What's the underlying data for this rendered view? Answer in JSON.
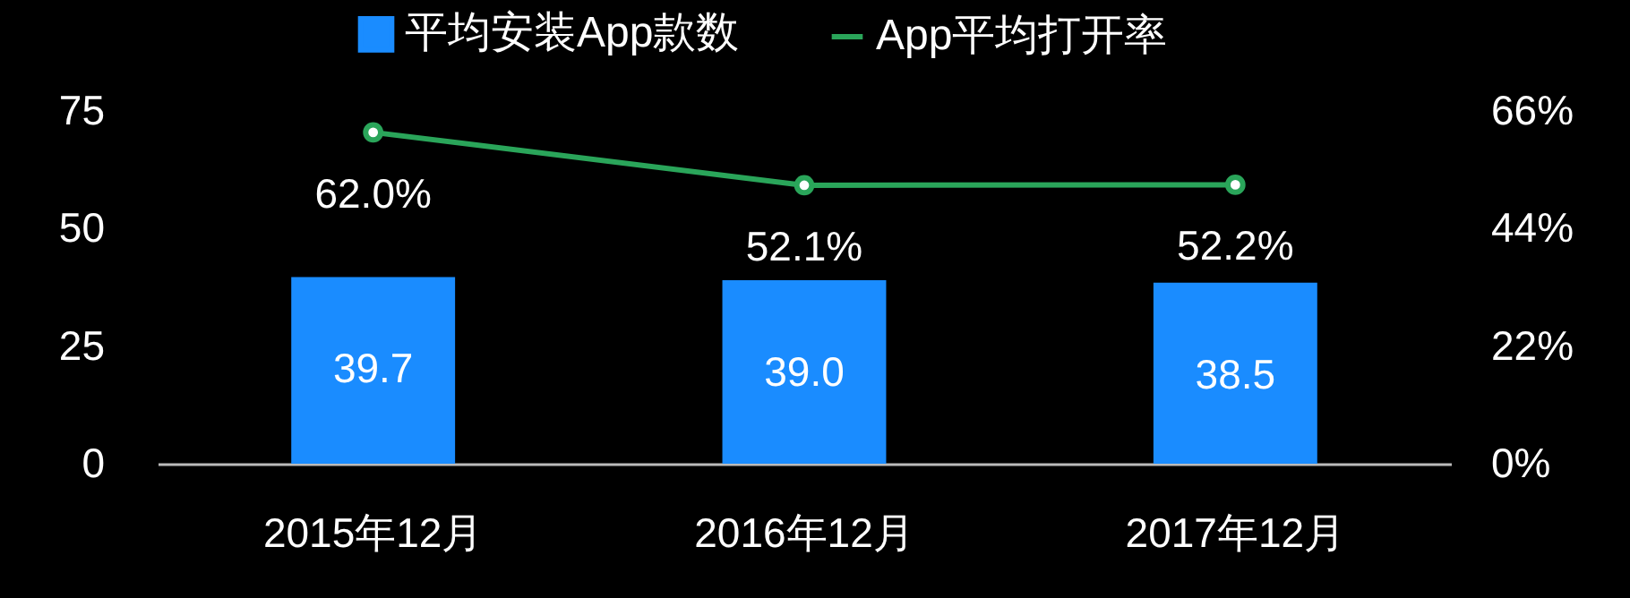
{
  "chart_data": {
    "type": "bar",
    "categories": [
      "2015年12月",
      "2016年12月",
      "2017年12月"
    ],
    "ylim": [
      0,
      75
    ],
    "yticks": [
      0,
      25,
      50,
      75
    ],
    "y2lim": [
      0,
      66
    ],
    "y2ticks": [
      {
        "value": 0,
        "label": "0%"
      },
      {
        "value": 22,
        "label": "22%"
      },
      {
        "value": 44,
        "label": "44%"
      },
      {
        "value": 66,
        "label": "66%"
      }
    ],
    "series": [
      {
        "name": "平均安装App款数",
        "color": "#1a8cff",
        "values": [
          39.7,
          39.0,
          38.5
        ],
        "value_labels": [
          "39.7",
          "39.0",
          "38.5"
        ]
      },
      {
        "name": "App平均打开率",
        "type": "line",
        "axis": "y2",
        "color": "#2aa55a",
        "values": [
          62.0,
          52.1,
          52.2
        ],
        "value_labels": [
          "62.0%",
          "52.1%",
          "52.2%"
        ]
      }
    ],
    "marker": "circle",
    "legend": "top",
    "grid": false
  }
}
